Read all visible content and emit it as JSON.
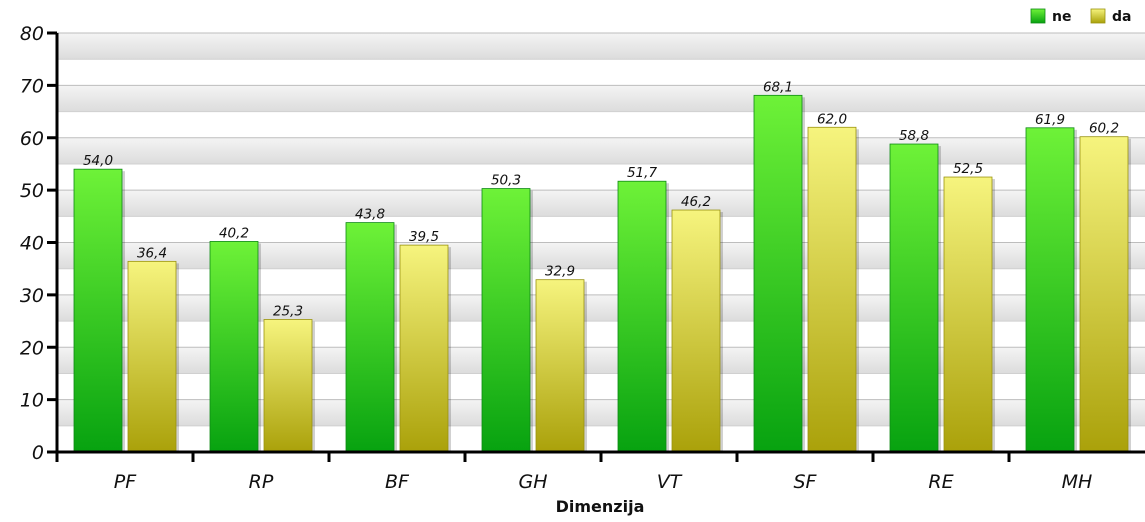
{
  "chart_data": {
    "type": "bar",
    "xlabel": "Dimenzija",
    "ylabel": "",
    "ylim": [
      0,
      80
    ],
    "yticks": [
      0,
      10,
      20,
      30,
      40,
      50,
      60,
      70,
      80
    ],
    "grid": true,
    "legend_position": "top-right",
    "categories": [
      "PF",
      "RP",
      "BF",
      "GH",
      "VT",
      "SF",
      "RE",
      "MH"
    ],
    "series": [
      {
        "name": "ne",
        "color": "#2ec21a",
        "values": [
          54.0,
          40.2,
          43.8,
          50.3,
          51.7,
          68.1,
          58.8,
          61.9
        ],
        "labels": [
          "54,0",
          "40,2",
          "43,8",
          "50,3",
          "51,7",
          "68,1",
          "58,8",
          "61,9"
        ]
      },
      {
        "name": "da",
        "color": "#dede3a",
        "values": [
          36.4,
          25.3,
          39.5,
          32.9,
          46.2,
          62.0,
          52.5,
          60.2
        ],
        "labels": [
          "36,4",
          "25,3",
          "39,5",
          "32,9",
          "46,2",
          "62,0",
          "52,5",
          "60,2"
        ]
      }
    ]
  }
}
